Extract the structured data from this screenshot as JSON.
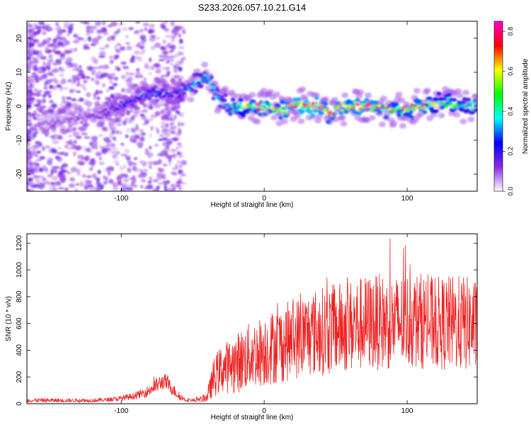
{
  "title": "S233.2026.057.10.21.G14",
  "chart_data": [
    {
      "type": "heatmap",
      "xlabel": "Height of straight line (km)",
      "ylabel": "Frequency (Hz)",
      "xlim": [
        -166,
        149
      ],
      "ylim": [
        -25,
        25
      ],
      "xticks": [
        -100,
        0,
        100
      ],
      "yticks": [
        -20,
        -10,
        0,
        10,
        20
      ],
      "colorbar": {
        "label": "Normalized spectral amplitude",
        "range": [
          0,
          0.85
        ],
        "ticks": [
          0.0,
          0.2,
          0.4,
          0.6,
          0.8
        ],
        "colors": [
          "#ffffff",
          "#8a2be2",
          "#0000ff",
          "#00ffff",
          "#00ff00",
          "#ffff00",
          "#ff0000",
          "#ff00cc"
        ]
      },
      "ridge": {
        "x": [
          -155,
          -140,
          -120,
          -105,
          -95,
          -85,
          -75,
          -65,
          -55,
          -48,
          -40,
          -35,
          -30,
          -25,
          -20,
          -10,
          0,
          10,
          20,
          30,
          40,
          45,
          50,
          60,
          70,
          80,
          90,
          100,
          110,
          120,
          130,
          140,
          149
        ],
        "freq": [
          -5,
          -4,
          -3,
          -1,
          1,
          3,
          4,
          3,
          5,
          7,
          8,
          4,
          2,
          -1,
          0,
          0,
          0,
          -1,
          0,
          0,
          0,
          -2,
          -1,
          0,
          0,
          0,
          -1,
          -1,
          0,
          1,
          1,
          0,
          0
        ],
        "amplitude": [
          0.08,
          0.1,
          0.12,
          0.18,
          0.22,
          0.25,
          0.25,
          0.22,
          0.3,
          0.35,
          0.4,
          0.35,
          0.3,
          0.35,
          0.45,
          0.6,
          0.65,
          0.6,
          0.7,
          0.75,
          0.7,
          0.6,
          0.7,
          0.65,
          0.7,
          0.65,
          0.6,
          0.6,
          0.65,
          0.55,
          0.5,
          0.45,
          0.4
        ]
      }
    },
    {
      "type": "line",
      "xlabel": "Height of straight line (km)",
      "ylabel": "SNR (10 * v/v)",
      "xlim": [
        -166,
        149
      ],
      "ylim": [
        0,
        1270
      ],
      "xticks": [
        -100,
        0,
        100
      ],
      "yticks": [
        0,
        200,
        400,
        600,
        800,
        1000,
        1200
      ],
      "color": "#ee2222",
      "envelope": {
        "x": [
          -166,
          -140,
          -120,
          -110,
          -100,
          -90,
          -82,
          -75,
          -70,
          -65,
          -60,
          -55,
          -50,
          -45,
          -40,
          -35,
          -30,
          -25,
          -20,
          -15,
          -10,
          -5,
          0,
          5,
          10,
          20,
          30,
          40,
          50,
          60,
          70,
          80,
          90,
          100,
          110,
          120,
          130,
          140,
          149
        ],
        "mean": [
          25,
          25,
          25,
          30,
          40,
          60,
          90,
          140,
          170,
          120,
          60,
          30,
          25,
          30,
          50,
          200,
          260,
          280,
          300,
          330,
          360,
          380,
          400,
          420,
          440,
          480,
          520,
          540,
          560,
          580,
          600,
          610,
          600,
          620,
          620,
          600,
          600,
          600,
          580
        ],
        "spread": [
          15,
          15,
          15,
          15,
          20,
          25,
          40,
          60,
          60,
          50,
          30,
          15,
          12,
          20,
          40,
          150,
          180,
          200,
          220,
          240,
          250,
          260,
          270,
          280,
          290,
          300,
          320,
          330,
          340,
          350,
          360,
          360,
          350,
          360,
          360,
          350,
          360,
          360,
          340
        ]
      }
    }
  ]
}
